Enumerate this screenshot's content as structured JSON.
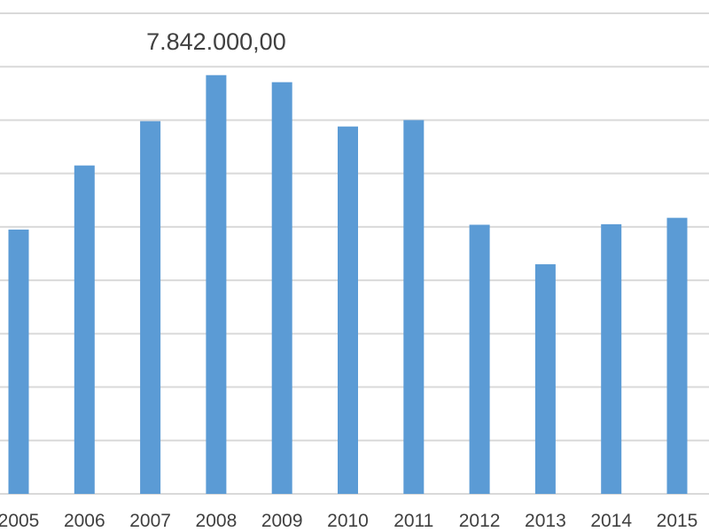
{
  "chart_data": {
    "type": "bar",
    "categories": [
      "2005",
      "2006",
      "2007",
      "2008",
      "2009",
      "2010",
      "2011",
      "2012",
      "2013",
      "2014",
      "2015"
    ],
    "values": [
      4950000,
      6150000,
      6980000,
      7842000,
      7710000,
      6880000,
      7000000,
      5040000,
      4300000,
      5050000,
      5170000
    ],
    "data_labels": [
      {
        "category": "2008",
        "text": "7.842.000,00"
      }
    ],
    "ylim": [
      0,
      9000000
    ],
    "grid": true,
    "legend": "none",
    "colors": {
      "bar": "#5b9bd5",
      "grid": "#d9d9d9",
      "text": "#404040"
    }
  }
}
